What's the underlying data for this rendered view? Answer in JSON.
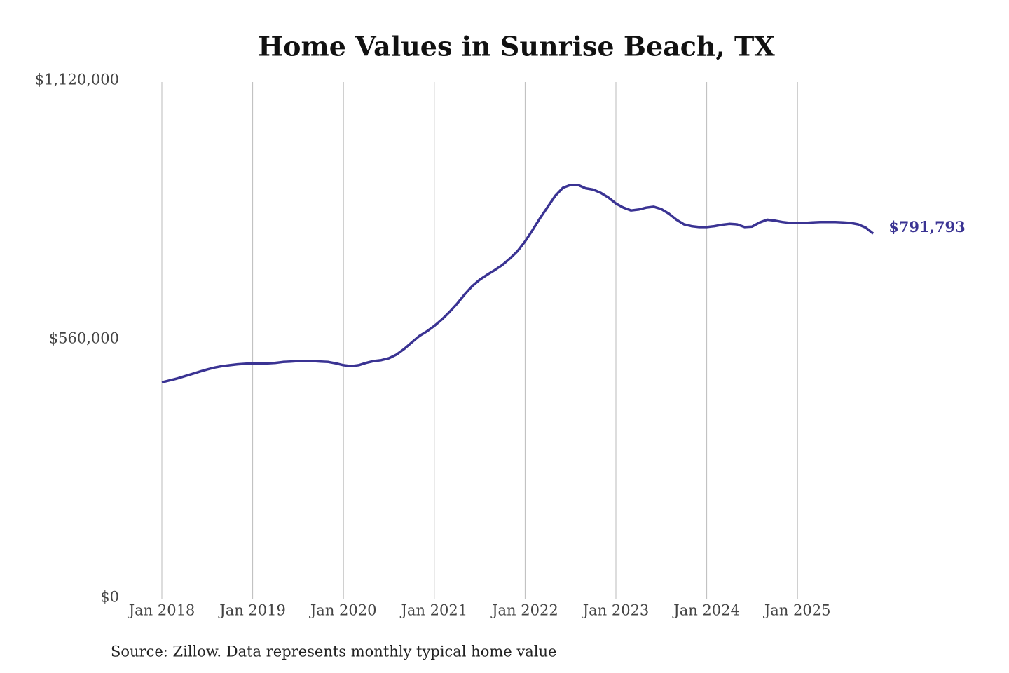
{
  "chart_data": {
    "type": "line",
    "title": "Home Values in Sunrise Beach, TX",
    "source": "Source: Zillow. Data represents monthly typical home value",
    "x": [
      "2018-01",
      "2018-02",
      "2018-03",
      "2018-04",
      "2018-05",
      "2018-06",
      "2018-07",
      "2018-08",
      "2018-09",
      "2018-10",
      "2018-11",
      "2018-12",
      "2019-01",
      "2019-02",
      "2019-03",
      "2019-04",
      "2019-05",
      "2019-06",
      "2019-07",
      "2019-08",
      "2019-09",
      "2019-10",
      "2019-11",
      "2019-12",
      "2020-01",
      "2020-02",
      "2020-03",
      "2020-04",
      "2020-05",
      "2020-06",
      "2020-07",
      "2020-08",
      "2020-09",
      "2020-10",
      "2020-11",
      "2020-12",
      "2021-01",
      "2021-02",
      "2021-03",
      "2021-04",
      "2021-05",
      "2021-06",
      "2021-07",
      "2021-08",
      "2021-09",
      "2021-10",
      "2021-11",
      "2021-12",
      "2022-01",
      "2022-02",
      "2022-03",
      "2022-04",
      "2022-05",
      "2022-06",
      "2022-07",
      "2022-08",
      "2022-09",
      "2022-10",
      "2022-11",
      "2022-12",
      "2023-01",
      "2023-02",
      "2023-03",
      "2023-04",
      "2023-05",
      "2023-06",
      "2023-07",
      "2023-08",
      "2023-09",
      "2023-10",
      "2023-11",
      "2023-12",
      "2024-01",
      "2024-02",
      "2024-03",
      "2024-04",
      "2024-05",
      "2024-06",
      "2024-07",
      "2024-08",
      "2024-09",
      "2024-10",
      "2024-11",
      "2024-12",
      "2025-01",
      "2025-02",
      "2025-03",
      "2025-04",
      "2025-05",
      "2025-06",
      "2025-07",
      "2025-08",
      "2025-09",
      "2025-10",
      "2025-11"
    ],
    "series": [
      {
        "color": "#3a3393",
        "end_label": "$791,793",
        "values": [
          470000,
          474000,
          478000,
          483000,
          488000,
          493000,
          498000,
          502000,
          505000,
          507000,
          509000,
          510000,
          511000,
          511000,
          511000,
          512000,
          514000,
          515000,
          516000,
          516000,
          516000,
          515000,
          514000,
          511000,
          507000,
          505000,
          507000,
          512000,
          516000,
          518000,
          522000,
          530000,
          542000,
          556000,
          570000,
          580000,
          592000,
          606000,
          622000,
          640000,
          660000,
          678000,
          692000,
          703000,
          713000,
          724000,
          738000,
          754000,
          775000,
          800000,
          826000,
          850000,
          874000,
          891000,
          897000,
          897000,
          890000,
          887000,
          880000,
          870000,
          857000,
          848000,
          842000,
          844000,
          848000,
          850000,
          845000,
          835000,
          822000,
          812000,
          808000,
          806000,
          806000,
          808000,
          811000,
          813000,
          812000,
          806000,
          807000,
          816000,
          822000,
          820000,
          817000,
          815000,
          815000,
          815000,
          816000,
          817000,
          817000,
          817000,
          816000,
          815000,
          812000,
          805000,
          791793
        ]
      }
    ],
    "ylim": [
      0,
      1120000
    ],
    "yticks": [
      {
        "value": 0,
        "label": "$0"
      },
      {
        "value": 560000,
        "label": "$560,000"
      },
      {
        "value": 1120000,
        "label": "$1,120,000"
      }
    ],
    "xticks": [
      {
        "value": "2018-01",
        "label": "Jan 2018"
      },
      {
        "value": "2019-01",
        "label": "Jan 2019"
      },
      {
        "value": "2020-01",
        "label": "Jan 2020"
      },
      {
        "value": "2021-01",
        "label": "Jan 2021"
      },
      {
        "value": "2022-01",
        "label": "Jan 2022"
      },
      {
        "value": "2023-01",
        "label": "Jan 2023"
      },
      {
        "value": "2024-01",
        "label": "Jan 2024"
      },
      {
        "value": "2025-01",
        "label": "Jan 2025"
      }
    ],
    "grid": true
  }
}
